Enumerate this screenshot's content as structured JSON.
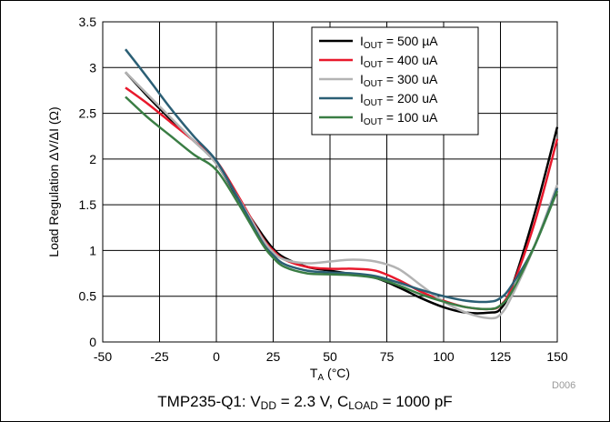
{
  "chart_data": {
    "type": "line",
    "title": "",
    "xlabel": {
      "main": "T",
      "sub": "A",
      "unit": " (°C)"
    },
    "ylabel": "Load Regulation ΔV/ΔI (Ω)",
    "xlim": [
      -50,
      150
    ],
    "ylim": [
      0,
      3.5
    ],
    "xticks": [
      "-50",
      "-25",
      "0",
      "25",
      "50",
      "75",
      "100",
      "125",
      "150"
    ],
    "yticks": [
      "0",
      "0.5",
      "1",
      "1.5",
      "2",
      "2.5",
      "3",
      "3.5"
    ],
    "grid": true,
    "legend_position": "top-right",
    "series": [
      {
        "label_main": "I",
        "label_sub": "OUT",
        "label_rest": " = 500 µA",
        "color": "#000000",
        "x": [
          -40,
          -30,
          -20,
          -10,
          0,
          10,
          20,
          25,
          30,
          40,
          50,
          60,
          70,
          80,
          90,
          100,
          110,
          120,
          125,
          130,
          140,
          150
        ],
        "y": [
          2.95,
          2.68,
          2.43,
          2.2,
          1.95,
          1.55,
          1.18,
          1.02,
          0.92,
          0.82,
          0.78,
          0.74,
          0.7,
          0.6,
          0.48,
          0.38,
          0.32,
          0.32,
          0.36,
          0.6,
          1.4,
          2.35
        ]
      },
      {
        "label_main": "I",
        "label_sub": "OUT",
        "label_rest": " = 400 uA",
        "color": "#e8192c",
        "x": [
          -40,
          -30,
          -20,
          -10,
          0,
          10,
          20,
          25,
          30,
          40,
          50,
          60,
          70,
          80,
          90,
          100,
          110,
          120,
          125,
          130,
          140,
          150
        ],
        "y": [
          2.78,
          2.6,
          2.4,
          2.2,
          1.98,
          1.58,
          1.15,
          1.0,
          0.9,
          0.82,
          0.8,
          0.8,
          0.78,
          0.68,
          0.55,
          0.45,
          0.38,
          0.36,
          0.4,
          0.6,
          1.3,
          2.22
        ]
      },
      {
        "label_main": "I",
        "label_sub": "OUT",
        "label_rest": " = 300 uA",
        "color": "#b3b3b3",
        "x": [
          -40,
          -30,
          -20,
          -10,
          0,
          10,
          20,
          25,
          30,
          40,
          50,
          60,
          70,
          80,
          90,
          100,
          110,
          120,
          125,
          130,
          140,
          150
        ],
        "y": [
          2.95,
          2.7,
          2.45,
          2.2,
          1.95,
          1.56,
          1.14,
          0.98,
          0.9,
          0.86,
          0.88,
          0.9,
          0.88,
          0.8,
          0.62,
          0.44,
          0.32,
          0.26,
          0.3,
          0.5,
          1.05,
          1.72
        ]
      },
      {
        "label_main": "I",
        "label_sub": "OUT",
        "label_rest": " = 200 uA",
        "color": "#2b5f75",
        "x": [
          -40,
          -30,
          -20,
          -10,
          0,
          10,
          20,
          25,
          30,
          40,
          50,
          60,
          70,
          80,
          90,
          100,
          110,
          120,
          125,
          130,
          140,
          150
        ],
        "y": [
          3.2,
          2.88,
          2.55,
          2.25,
          1.98,
          1.55,
          1.1,
          0.95,
          0.85,
          0.78,
          0.76,
          0.75,
          0.72,
          0.65,
          0.57,
          0.5,
          0.45,
          0.44,
          0.48,
          0.62,
          1.05,
          1.68
        ]
      },
      {
        "label_main": "I",
        "label_sub": "OUT",
        "label_rest": " = 100 uA",
        "color": "#3a7d44",
        "x": [
          -40,
          -30,
          -20,
          -10,
          0,
          10,
          20,
          25,
          30,
          40,
          50,
          60,
          70,
          80,
          90,
          100,
          110,
          120,
          125,
          130,
          140,
          150
        ],
        "y": [
          2.68,
          2.45,
          2.25,
          2.05,
          1.88,
          1.5,
          1.08,
          0.92,
          0.82,
          0.75,
          0.74,
          0.73,
          0.7,
          0.62,
          0.52,
          0.44,
          0.38,
          0.36,
          0.4,
          0.55,
          1.05,
          1.65
        ]
      }
    ]
  },
  "caption": {
    "text1": "TMP235-Q1: V",
    "sub1": "DD",
    "text2": " = 2.3 V, C",
    "sub2": "LOAD",
    "text3": " = 1000 pF"
  },
  "figure_id": "D006"
}
